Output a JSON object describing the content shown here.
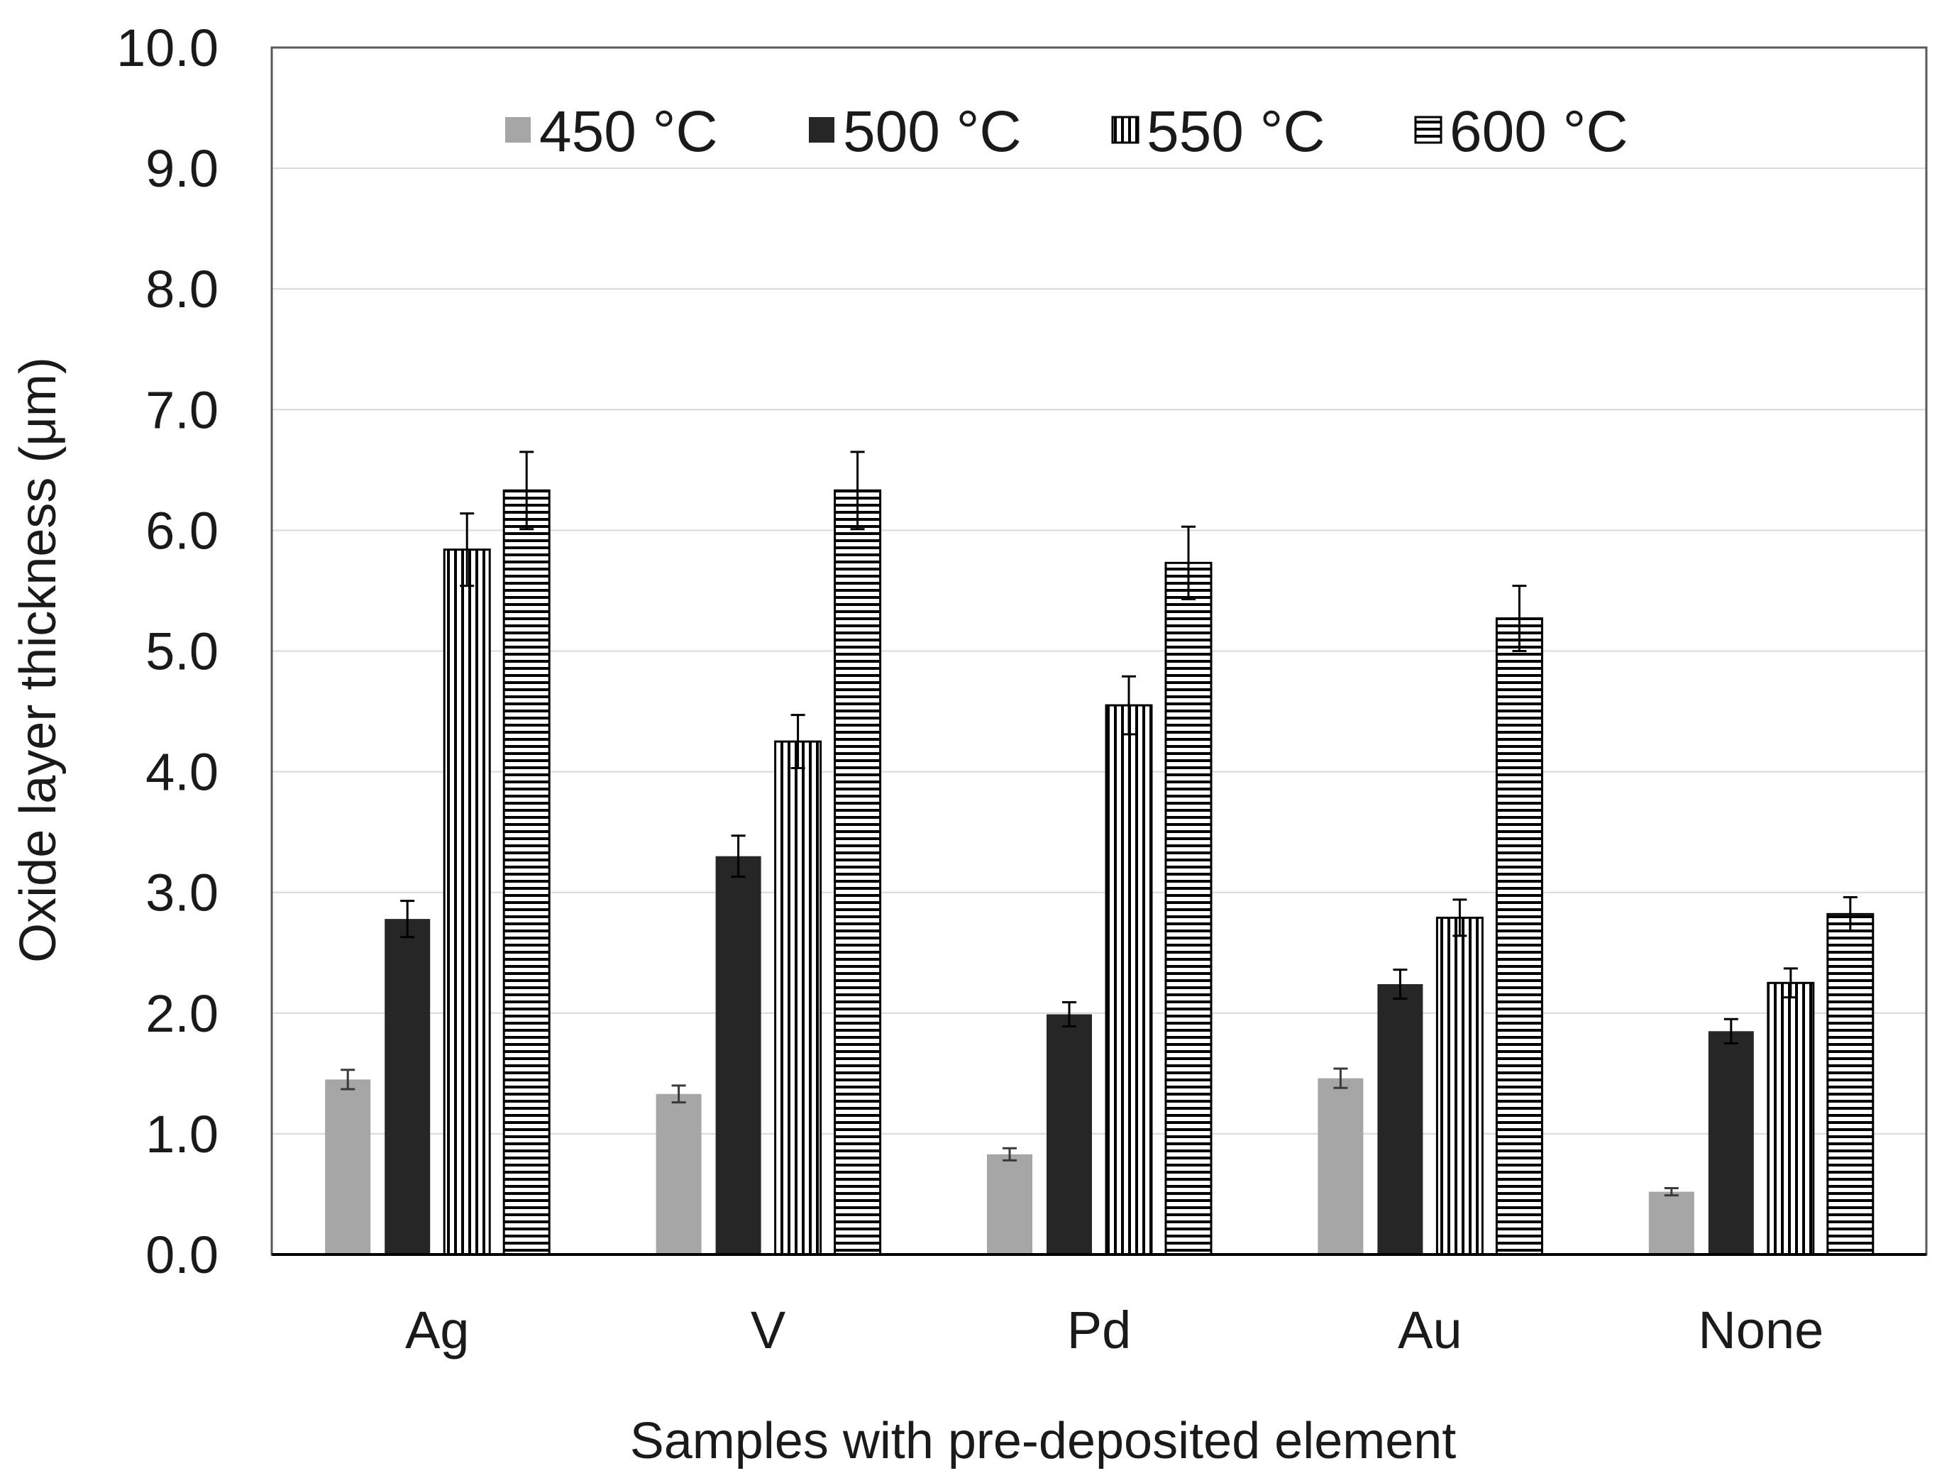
{
  "chart_data": {
    "type": "bar",
    "title": "",
    "xlabel": "Samples with pre-deposited element",
    "ylabel": "Oxide layer  thickness (μm)",
    "categories": [
      "Ag",
      "V",
      "Pd",
      "Au",
      "None"
    ],
    "ylim": [
      0,
      10
    ],
    "yticks": [
      "0.0",
      "1.0",
      "2.0",
      "3.0",
      "4.0",
      "5.0",
      "6.0",
      "7.0",
      "8.0",
      "9.0",
      "10.0"
    ],
    "grid": true,
    "legend_position": "top",
    "series": [
      {
        "name": "450 °C",
        "pattern": "solid",
        "color": "#a6a6a6",
        "values": [
          1.45,
          1.33,
          0.83,
          1.46,
          0.52
        ],
        "errors": [
          0.08,
          0.07,
          0.05,
          0.08,
          0.03
        ]
      },
      {
        "name": "500 °C",
        "pattern": "solid",
        "color": "#262626",
        "values": [
          2.78,
          3.3,
          1.99,
          2.24,
          1.85
        ],
        "errors": [
          0.15,
          0.17,
          0.1,
          0.12,
          0.1
        ]
      },
      {
        "name": "550 °C",
        "pattern": "vertical-stripes",
        "color": "#000000",
        "values": [
          5.84,
          4.25,
          4.55,
          2.79,
          2.25
        ],
        "errors": [
          0.3,
          0.22,
          0.24,
          0.15,
          0.12
        ]
      },
      {
        "name": "600 °C",
        "pattern": "horizontal-stripes",
        "color": "#000000",
        "values": [
          6.33,
          6.33,
          5.73,
          5.27,
          2.82
        ],
        "errors": [
          0.32,
          0.32,
          0.3,
          0.27,
          0.14
        ]
      }
    ]
  }
}
